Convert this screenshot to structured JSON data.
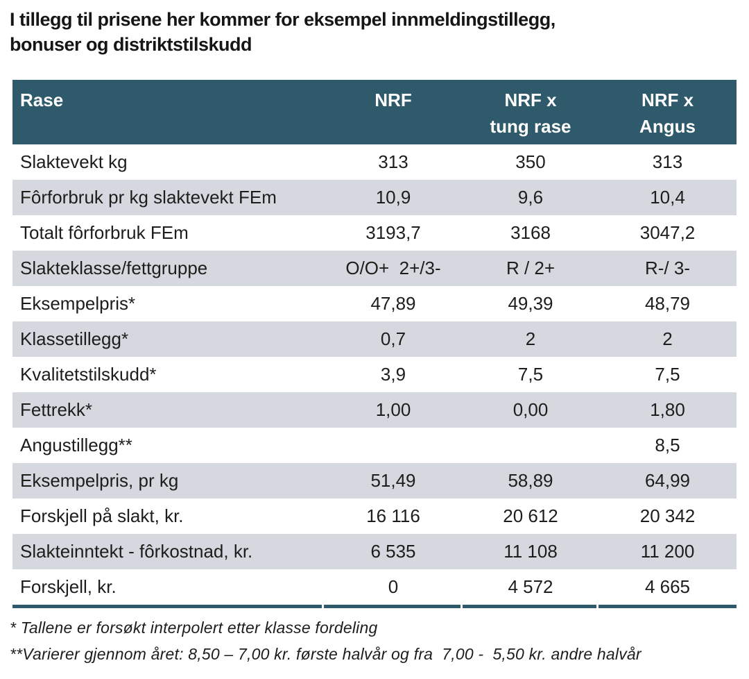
{
  "title": "I tillegg til prisene her kommer for eksempel innmeldingstillegg,\nbonuser og distriktstilskudd",
  "table": {
    "columns": [
      {
        "label": "Rase"
      },
      {
        "label": "NRF"
      },
      {
        "label": "NRF x\ntung rase"
      },
      {
        "label": "NRF x\nAngus"
      }
    ],
    "rows": [
      {
        "label": "Slaktevekt kg",
        "values": [
          "313",
          "350",
          "313"
        ]
      },
      {
        "label": "Fôrforbruk pr kg slaktevekt FEm",
        "values": [
          "10,9",
          "9,6",
          "10,4"
        ]
      },
      {
        "label": "Totalt fôrforbruk FEm",
        "values": [
          "3193,7",
          "3168",
          "3047,2"
        ]
      },
      {
        "label": "Slakteklasse/fettgruppe",
        "values": [
          "O/O+  2+/3-",
          "R / 2+",
          "R-/ 3-"
        ]
      },
      {
        "label": "Eksempelpris*",
        "values": [
          "47,89",
          "49,39",
          "48,79"
        ]
      },
      {
        "label": "Klassetillegg*",
        "values": [
          "0,7",
          "2",
          "2"
        ]
      },
      {
        "label": "Kvalitetstilskudd*",
        "values": [
          "3,9",
          "7,5",
          "7,5"
        ]
      },
      {
        "label": "Fettrekk*",
        "values": [
          "1,00",
          "0,00",
          "1,80"
        ]
      },
      {
        "label": "Angustillegg**",
        "values": [
          "",
          "",
          "8,5"
        ]
      },
      {
        "label": "Eksempelpris, pr kg",
        "values": [
          "51,49",
          "58,89",
          "64,99"
        ]
      },
      {
        "label": "Forskjell på slakt, kr.",
        "values": [
          "16 116",
          "20 612",
          "20 342"
        ]
      },
      {
        "label": "Slakteinntekt - fôrkostnad, kr.",
        "values": [
          "6 535",
          "11 108",
          "11 200"
        ]
      },
      {
        "label": "Forskjell, kr.",
        "values": [
          "0",
          "4 572",
          "4 665"
        ]
      }
    ]
  },
  "footnotes": [
    "* Tallene er forsøkt interpolert etter klasse fordeling",
    "**Varierer gjennom året: 8,50 – 7,00 kr. første halvår og fra  7,00 -  5,50 kr. andre halvår"
  ],
  "colors": {
    "header_bg": "#2e5a6c",
    "row_alt_bg": "#d5d9df",
    "header_text": "#ffffff",
    "body_text": "#1d1d1b",
    "bottom_border": "#2e5a6c"
  }
}
